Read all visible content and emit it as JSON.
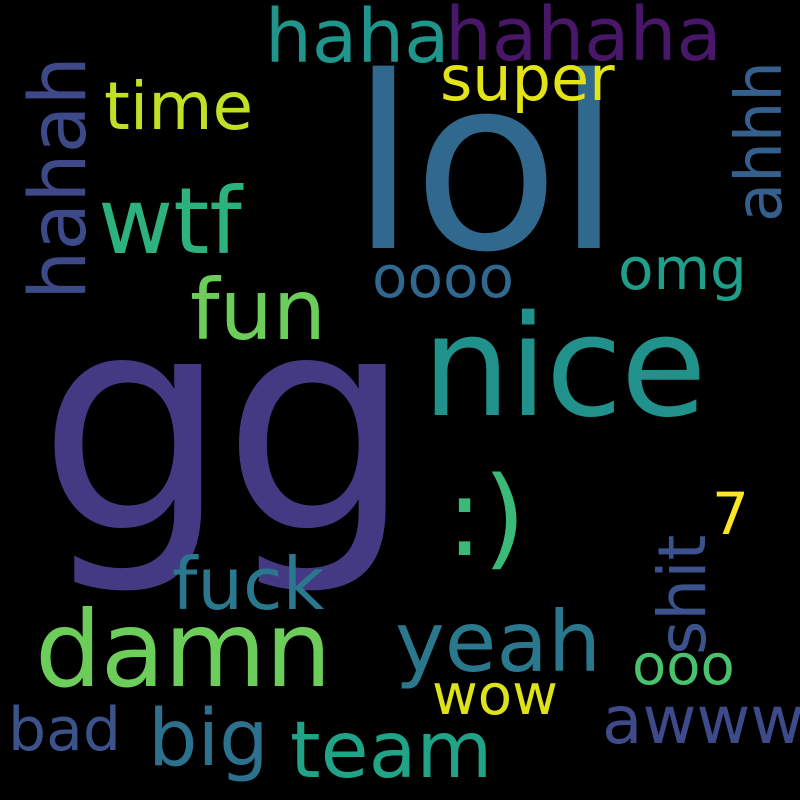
{
  "background": "#000000",
  "words": {
    "gg": {
      "text": "gg",
      "color": "#443a83"
    },
    "lol": {
      "text": "lol",
      "color": "#31688e"
    },
    "nice": {
      "text": "nice",
      "color": "#21918c"
    },
    "damn": {
      "text": "damn",
      "color": "#6ccd5a"
    },
    "wtf": {
      "text": "wtf",
      "color": "#2db27d"
    },
    "smile": {
      "text": ":)",
      "color": "#3aba76"
    },
    "fun": {
      "text": "fun",
      "color": "#6ccd5a"
    },
    "fuck": {
      "text": "fuck",
      "color": "#2a788e"
    },
    "yeah": {
      "text": "yeah",
      "color": "#2a788e"
    },
    "big": {
      "text": "big",
      "color": "#2c728e"
    },
    "team": {
      "text": "team",
      "color": "#20a386"
    },
    "awww": {
      "text": "awww",
      "color": "#3e4a89"
    },
    "haha": {
      "text": "haha",
      "color": "#1f958b"
    },
    "hahaha": {
      "text": "hahaha",
      "color": "#481769"
    },
    "super": {
      "text": "super",
      "color": "#e2e418"
    },
    "time": {
      "text": "time",
      "color": "#c0df25"
    },
    "oooo": {
      "text": "oooo",
      "color": "#31688e"
    },
    "omg": {
      "text": "omg",
      "color": "#1f9e89"
    },
    "ooo": {
      "text": "ooo",
      "color": "#4ac16d"
    },
    "wow": {
      "text": "wow",
      "color": "#dde318"
    },
    "bad": {
      "text": "bad",
      "color": "#3b528b"
    },
    "seven": {
      "text": "7",
      "color": "#fde725"
    },
    "hahah": {
      "text": "hahah",
      "color": "#3e4989"
    },
    "ahhh": {
      "text": "ahhh",
      "color": "#355f8d"
    },
    "shit": {
      "text": "shit",
      "color": "#3b528b"
    }
  }
}
